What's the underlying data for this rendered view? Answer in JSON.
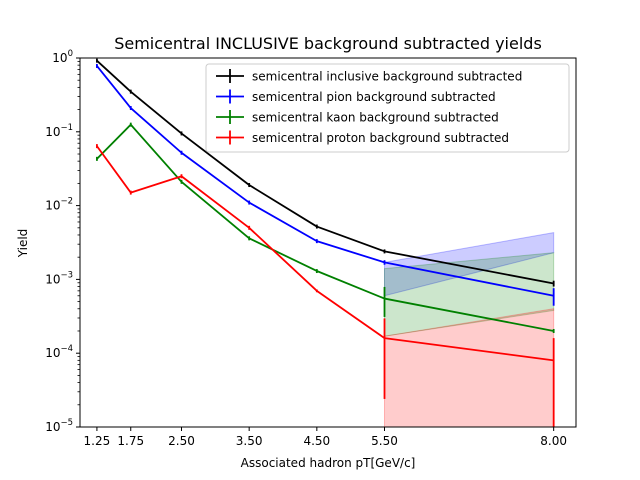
{
  "chart_data": {
    "type": "line",
    "title": "Semicentral INCLUSIVE background subtracted yields",
    "xlabel": "Associated hadron pT[GeV/c]",
    "ylabel": "Yield",
    "x": [
      1.25,
      1.75,
      2.5,
      3.5,
      4.5,
      5.5,
      8.0
    ],
    "xticks": [
      "1.25",
      "1.75",
      "2.50",
      "3.50",
      "4.50",
      "5.50",
      "8.00"
    ],
    "xlim": [
      1.0,
      8.33
    ],
    "ylim": [
      1e-05,
      1.0
    ],
    "yscale": "log",
    "yticks": [
      {
        "value": 1e-05,
        "base": "10",
        "exp": "−5"
      },
      {
        "value": 0.0001,
        "base": "10",
        "exp": "−4"
      },
      {
        "value": 0.001,
        "base": "10",
        "exp": "−3"
      },
      {
        "value": 0.01,
        "base": "10",
        "exp": "−2"
      },
      {
        "value": 0.1,
        "base": "10",
        "exp": "−1"
      },
      {
        "value": 1,
        "base": "10",
        "exp": "0"
      }
    ],
    "legend_position": "upper right",
    "series": [
      {
        "name": "semicentral inclusive background subtracted",
        "color": "#000000",
        "values": [
          0.92,
          0.35,
          0.095,
          0.019,
          0.0052,
          0.0024,
          0.00088
        ],
        "errors": [
          0.0,
          0.0,
          0.0,
          0.0,
          0.0,
          0.00015,
          8e-05
        ],
        "band": null
      },
      {
        "name": "semicentral pion background subtracted",
        "color": "#0000ff",
        "values": [
          0.78,
          0.21,
          0.052,
          0.011,
          0.0033,
          0.0017,
          0.0006
        ],
        "errors": [
          0.0,
          0.0,
          0.0,
          0.0,
          0.0,
          0.00012,
          0.00016
        ],
        "band": {
          "x": [
            5.5,
            8.0
          ],
          "low": [
            0.0006,
            0.0023
          ],
          "high": [
            0.0017,
            0.0043
          ],
          "color": "#0000ff",
          "opacity": 0.2
        }
      },
      {
        "name": "semicentral kaon background subtracted",
        "color": "#008000",
        "values": [
          0.043,
          0.125,
          0.021,
          0.0036,
          0.0013,
          0.00055,
          0.0002
        ],
        "errors": [
          0.0,
          0.0,
          0.0,
          0.0,
          8e-05,
          0.00024,
          0.0
        ],
        "band": {
          "x": [
            5.5,
            8.0
          ],
          "low": [
            0.00017,
            0.00038
          ],
          "high": [
            0.0014,
            0.0023
          ],
          "color": "#008000",
          "opacity": 0.2
        }
      },
      {
        "name": "semicentral proton background subtracted",
        "color": "#ff0000",
        "values": [
          0.064,
          0.015,
          0.025,
          0.005,
          0.0007,
          0.00016,
          8e-05
        ],
        "errors": [
          0.0,
          0.0,
          0.0,
          0.0,
          3e-05,
          0.000136,
          7.99e-05
        ],
        "band": {
          "x": [
            5.5,
            8.0
          ],
          "low": [
            1e-05,
            1e-05
          ],
          "high": [
            0.00017,
            0.0004
          ],
          "color": "#ff0000",
          "opacity": 0.2
        }
      }
    ]
  }
}
